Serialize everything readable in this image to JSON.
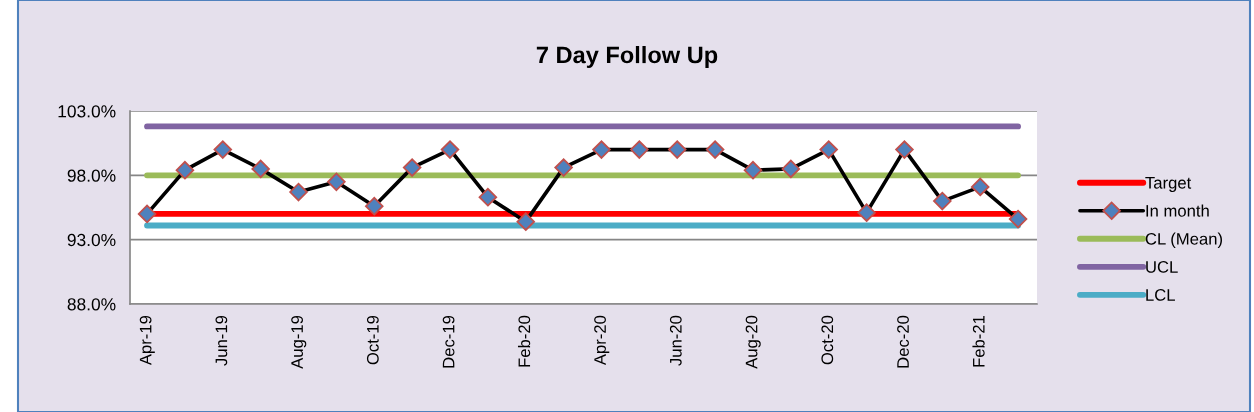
{
  "chart_data": {
    "type": "line",
    "title": "7 Day Follow Up",
    "categories": [
      "Apr-19",
      null,
      "Jun-19",
      null,
      "Aug-19",
      null,
      "Oct-19",
      null,
      "Dec-19",
      null,
      "Feb-20",
      null,
      "Apr-20",
      null,
      "Jun-20",
      null,
      "Aug-20",
      null,
      "Oct-20",
      null,
      "Dec-20",
      null,
      "Feb-21",
      null
    ],
    "series": [
      {
        "name": "Target",
        "color": "#ff0000",
        "values": [
          95.0,
          95.0,
          95.0,
          95.0,
          95.0,
          95.0,
          95.0,
          95.0,
          95.0,
          95.0,
          95.0,
          95.0,
          95.0,
          95.0,
          95.0,
          95.0,
          95.0,
          95.0,
          95.0,
          95.0,
          95.0,
          95.0,
          95.0,
          95.0
        ]
      },
      {
        "name": "In month",
        "color": "#000000",
        "marker": "diamond",
        "values": [
          95.0,
          98.4,
          100.0,
          98.5,
          96.7,
          97.5,
          95.6,
          98.6,
          100.0,
          96.3,
          94.4,
          98.6,
          100.0,
          100.0,
          100.0,
          100.0,
          98.4,
          98.5,
          100.0,
          95.1,
          100.0,
          96.0,
          97.1,
          94.6
        ]
      },
      {
        "name": "CL (Mean)",
        "color": "#9bbb59",
        "values": [
          98.0,
          98.0,
          98.0,
          98.0,
          98.0,
          98.0,
          98.0,
          98.0,
          98.0,
          98.0,
          98.0,
          98.0,
          98.0,
          98.0,
          98.0,
          98.0,
          98.0,
          98.0,
          98.0,
          98.0,
          98.0,
          98.0,
          98.0,
          98.0
        ]
      },
      {
        "name": "UCL",
        "color": "#8064a2",
        "values": [
          101.8,
          101.8,
          101.8,
          101.8,
          101.8,
          101.8,
          101.8,
          101.8,
          101.8,
          101.8,
          101.8,
          101.8,
          101.8,
          101.8,
          101.8,
          101.8,
          101.8,
          101.8,
          101.8,
          101.8,
          101.8,
          101.8,
          101.8,
          101.8
        ]
      },
      {
        "name": "LCL",
        "color": "#4bacc6",
        "values": [
          94.1,
          94.1,
          94.1,
          94.1,
          94.1,
          94.1,
          94.1,
          94.1,
          94.1,
          94.1,
          94.1,
          94.1,
          94.1,
          94.1,
          94.1,
          94.1,
          94.1,
          94.1,
          94.1,
          94.1,
          94.1,
          94.1,
          94.1,
          94.1
        ]
      }
    ],
    "ylim": [
      88,
      103
    ],
    "yticks": [
      {
        "value": 88,
        "label": "88.0%"
      },
      {
        "value": 93,
        "label": "93.0%"
      },
      {
        "value": 98,
        "label": "98.0%"
      },
      {
        "value": 103,
        "label": "103.0%"
      }
    ],
    "grid": "y",
    "legend": "right"
  }
}
